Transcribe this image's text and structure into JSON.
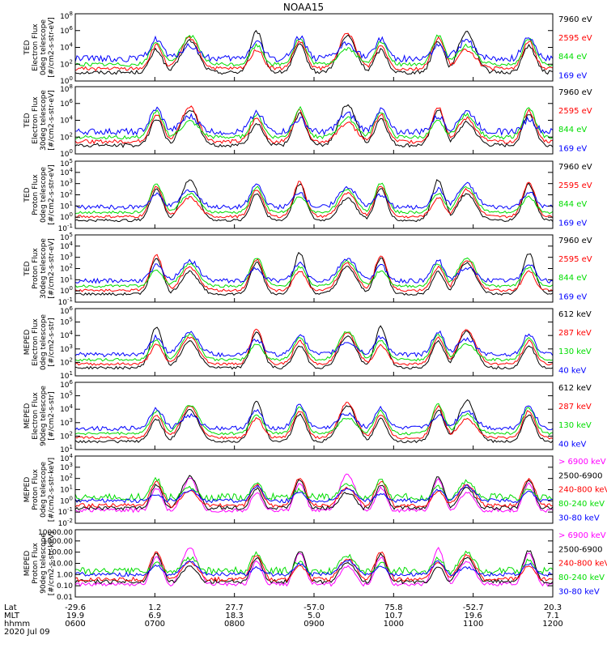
{
  "figure_title": "NOAA15",
  "chart_data": [
    {
      "type": "line",
      "ylabel": [
        "TED",
        "Electron Flux",
        "0deg telescope",
        "[#/cm2-s-str-eV]"
      ],
      "y_ticks": [
        "10^0",
        "10^2",
        "10^4",
        "10^6",
        "10^8"
      ],
      "series": [
        {
          "name": "7960 eV",
          "color": "#000000"
        },
        {
          "name": "2595 eV",
          "color": "#ff0000"
        },
        {
          "name": "844 eV",
          "color": "#00dd00"
        },
        {
          "name": "169 eV",
          "color": "#0000ff"
        }
      ],
      "legend_colors": [
        "#000000",
        "#ff0000",
        "#00dd00",
        "#0000ff"
      ]
    },
    {
      "type": "line",
      "ylabel": [
        "TED",
        "Electron Flux",
        "30deg telescope",
        "[#/cm2-s-str-eV]"
      ],
      "y_ticks": [
        "10^0",
        "10^2",
        "10^4",
        "10^6",
        "10^8"
      ],
      "series": [
        {
          "name": "7960 eV",
          "color": "#000000"
        },
        {
          "name": "2595 eV",
          "color": "#ff0000"
        },
        {
          "name": "844 eV",
          "color": "#00dd00"
        },
        {
          "name": "169 eV",
          "color": "#0000ff"
        }
      ]
    },
    {
      "type": "line",
      "ylabel": [
        "TED",
        "Proton Flux",
        "0deg telescope",
        "[#/cm2-s-str-eV]"
      ],
      "y_ticks": [
        "10^-1",
        "10^0",
        "10^1",
        "10^2",
        "10^3",
        "10^4",
        "10^5"
      ],
      "series": [
        {
          "name": "7960 eV",
          "color": "#000000"
        },
        {
          "name": "2595 eV",
          "color": "#ff0000"
        },
        {
          "name": "844 eV",
          "color": "#00dd00"
        },
        {
          "name": "169 eV",
          "color": "#0000ff"
        }
      ]
    },
    {
      "type": "line",
      "ylabel": [
        "TED",
        "Proton Flux",
        "30deg telescope",
        "[#/cm2-s-str-eV]"
      ],
      "y_ticks": [
        "10^-1",
        "10^0",
        "10^1",
        "10^2",
        "10^3",
        "10^4",
        "10^5"
      ],
      "series": [
        {
          "name": "7960 eV",
          "color": "#000000"
        },
        {
          "name": "2595 eV",
          "color": "#ff0000"
        },
        {
          "name": "844 eV",
          "color": "#00dd00"
        },
        {
          "name": "169 eV",
          "color": "#0000ff"
        }
      ]
    },
    {
      "type": "line",
      "ylabel": [
        "MEPED",
        "Electron Flux",
        "0deg telescope",
        "[#/cm2-s-str]"
      ],
      "y_ticks": [
        "10^1",
        "10^2",
        "10^3",
        "10^4",
        "10^5",
        "10^6"
      ],
      "series": [
        {
          "name": "612 keV",
          "color": "#000000"
        },
        {
          "name": "287 keV",
          "color": "#ff0000"
        },
        {
          "name": "130 keV",
          "color": "#00dd00"
        },
        {
          "name": "40 keV",
          "color": "#0000ff"
        }
      ]
    },
    {
      "type": "line",
      "ylabel": [
        "MEPED",
        "Electron Flux",
        "90deg telescope",
        "[#/cm2-s-str]"
      ],
      "y_ticks": [
        "10^1",
        "10^2",
        "10^3",
        "10^4",
        "10^5",
        "10^6"
      ],
      "series": [
        {
          "name": "612 keV",
          "color": "#000000"
        },
        {
          "name": "287 keV",
          "color": "#ff0000"
        },
        {
          "name": "130 keV",
          "color": "#00dd00"
        },
        {
          "name": "40 keV",
          "color": "#0000ff"
        }
      ]
    },
    {
      "type": "line",
      "ylabel": [
        "MEPED",
        "Proton Flux",
        "0deg telescope",
        "[#/cm2-s-str-keV]"
      ],
      "y_ticks": [
        "10^-2",
        "10^-1",
        "10^0",
        "10^1",
        "10^2",
        "10^3",
        "10^4"
      ],
      "series": [
        {
          "name": "> 6900 keV",
          "color": "#ff00ff"
        },
        {
          "name": "2500-6900",
          "color": "#000000"
        },
        {
          "name": "240-800 keV",
          "color": "#ff0000"
        },
        {
          "name": "80-240 keV",
          "color": "#00dd00"
        },
        {
          "name": "30-80 keV",
          "color": "#0000ff"
        }
      ]
    },
    {
      "type": "line",
      "ylabel": [
        "MEPED",
        "Proton Flux",
        "90deg telescope",
        "[#/cm2-s-str-keV]"
      ],
      "y_ticks": [
        "0.01",
        "0.10",
        "1.00",
        "10.00",
        "100.00",
        "1000.00",
        "10000.00"
      ],
      "series": [
        {
          "name": "> 6900 keV",
          "color": "#ff00ff"
        },
        {
          "name": "2500-6900",
          "color": "#000000"
        },
        {
          "name": "240-800 keV",
          "color": "#ff0000"
        },
        {
          "name": "80-240 keV",
          "color": "#00dd00"
        },
        {
          "name": "30-80 keV",
          "color": "#0000ff"
        }
      ]
    }
  ],
  "x_axis": {
    "row_labels": [
      "Lat",
      "MLT",
      "hhmm",
      "2020 Jul 09"
    ],
    "lat": [
      "-29.6",
      "1.2",
      "27.7",
      "-57.0",
      "75.8",
      "-52.7",
      "20.3"
    ],
    "mlt": [
      "19.9",
      "6.9",
      "18.3",
      "5.0",
      "10.7",
      "19.6",
      "7.1"
    ],
    "hhmm": [
      "0600",
      "0700",
      "0800",
      "0900",
      "1000",
      "1100",
      "1200"
    ]
  }
}
